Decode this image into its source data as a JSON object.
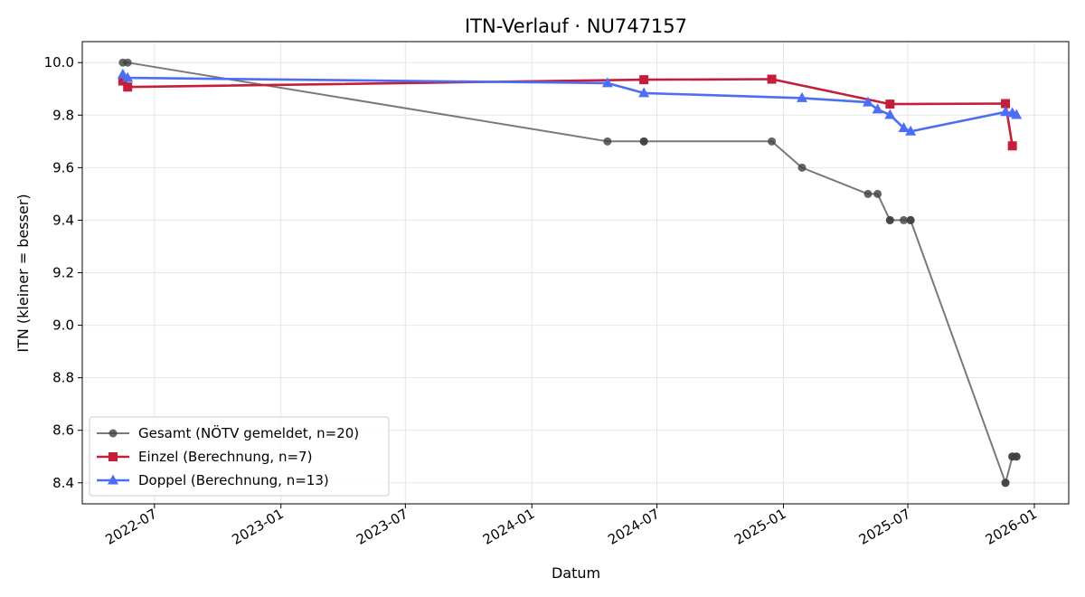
{
  "chart_data": {
    "type": "line",
    "title": "ITN-Verlauf · NU747157",
    "xlabel": "Datum",
    "ylabel": "ITN  (kleiner = besser)",
    "x_axis": {
      "type": "date",
      "range": [
        "2022-03-18",
        "2026-02-20"
      ],
      "ticks": [
        "2022-07-01",
        "2023-01-01",
        "2023-07-01",
        "2024-01-01",
        "2024-07-01",
        "2025-01-01",
        "2025-07-01",
        "2026-01-01"
      ],
      "tick_labels": [
        "2022-07",
        "2023-01",
        "2023-07",
        "2024-01",
        "2024-07",
        "2025-01",
        "2025-07",
        "2026-01"
      ]
    },
    "y_axis": {
      "range": [
        8.32,
        10.08
      ],
      "ticks": [
        8.4,
        8.6,
        8.8,
        9.0,
        9.2,
        9.4,
        9.6,
        9.8,
        10.0
      ],
      "tick_labels": [
        "8.4",
        "8.6",
        "8.8",
        "9.0",
        "9.2",
        "9.4",
        "9.6",
        "9.8",
        "10.0"
      ]
    },
    "grid": true,
    "legend_position": "lower-left",
    "series": [
      {
        "name": "Gesamt (NÖTV gemeldet, n=20)",
        "color": "#404040",
        "marker": "circle",
        "points": [
          {
            "x": "2022-05-16",
            "y": 10.0
          },
          {
            "x": "2022-05-23",
            "y": 10.0
          },
          {
            "x": "2024-04-20",
            "y": 9.7
          },
          {
            "x": "2024-06-12",
            "y": 9.7
          },
          {
            "x": "2024-06-12",
            "y": 9.7
          },
          {
            "x": "2024-12-15",
            "y": 9.7
          },
          {
            "x": "2025-01-28",
            "y": 9.6
          },
          {
            "x": "2025-05-04",
            "y": 9.5
          },
          {
            "x": "2025-05-18",
            "y": 9.5
          },
          {
            "x": "2025-06-05",
            "y": 9.4
          },
          {
            "x": "2025-06-05",
            "y": 9.4
          },
          {
            "x": "2025-06-25",
            "y": 9.4
          },
          {
            "x": "2025-07-05",
            "y": 9.4
          },
          {
            "x": "2025-07-05",
            "y": 9.4
          },
          {
            "x": "2025-11-20",
            "y": 8.4
          },
          {
            "x": "2025-11-20",
            "y": 8.4
          },
          {
            "x": "2025-11-30",
            "y": 8.5
          },
          {
            "x": "2025-11-30",
            "y": 8.5
          },
          {
            "x": "2025-12-06",
            "y": 8.5
          },
          {
            "x": "2025-12-06",
            "y": 8.5
          }
        ]
      },
      {
        "name": "Einzel (Berechnung, n=7)",
        "color": "#c41e3a",
        "marker": "square",
        "points": [
          {
            "x": "2022-05-16",
            "y": 9.93
          },
          {
            "x": "2022-05-23",
            "y": 9.907
          },
          {
            "x": "2024-06-12",
            "y": 9.935
          },
          {
            "x": "2024-12-15",
            "y": 9.937
          },
          {
            "x": "2025-06-05",
            "y": 9.842
          },
          {
            "x": "2025-11-20",
            "y": 9.844
          },
          {
            "x": "2025-11-30",
            "y": 9.683
          }
        ]
      },
      {
        "name": "Doppel (Berechnung, n=13)",
        "color": "#4c6ef5",
        "marker": "triangle",
        "points": [
          {
            "x": "2022-05-16",
            "y": 9.955
          },
          {
            "x": "2022-05-23",
            "y": 9.942
          },
          {
            "x": "2024-04-20",
            "y": 9.922
          },
          {
            "x": "2024-06-12",
            "y": 9.884
          },
          {
            "x": "2025-01-28",
            "y": 9.865
          },
          {
            "x": "2025-05-04",
            "y": 9.849
          },
          {
            "x": "2025-05-18",
            "y": 9.822
          },
          {
            "x": "2025-06-05",
            "y": 9.801
          },
          {
            "x": "2025-06-25",
            "y": 9.751
          },
          {
            "x": "2025-07-05",
            "y": 9.738
          },
          {
            "x": "2025-11-20",
            "y": 9.812
          },
          {
            "x": "2025-11-30",
            "y": 9.808
          },
          {
            "x": "2025-12-06",
            "y": 9.801
          }
        ]
      }
    ]
  }
}
